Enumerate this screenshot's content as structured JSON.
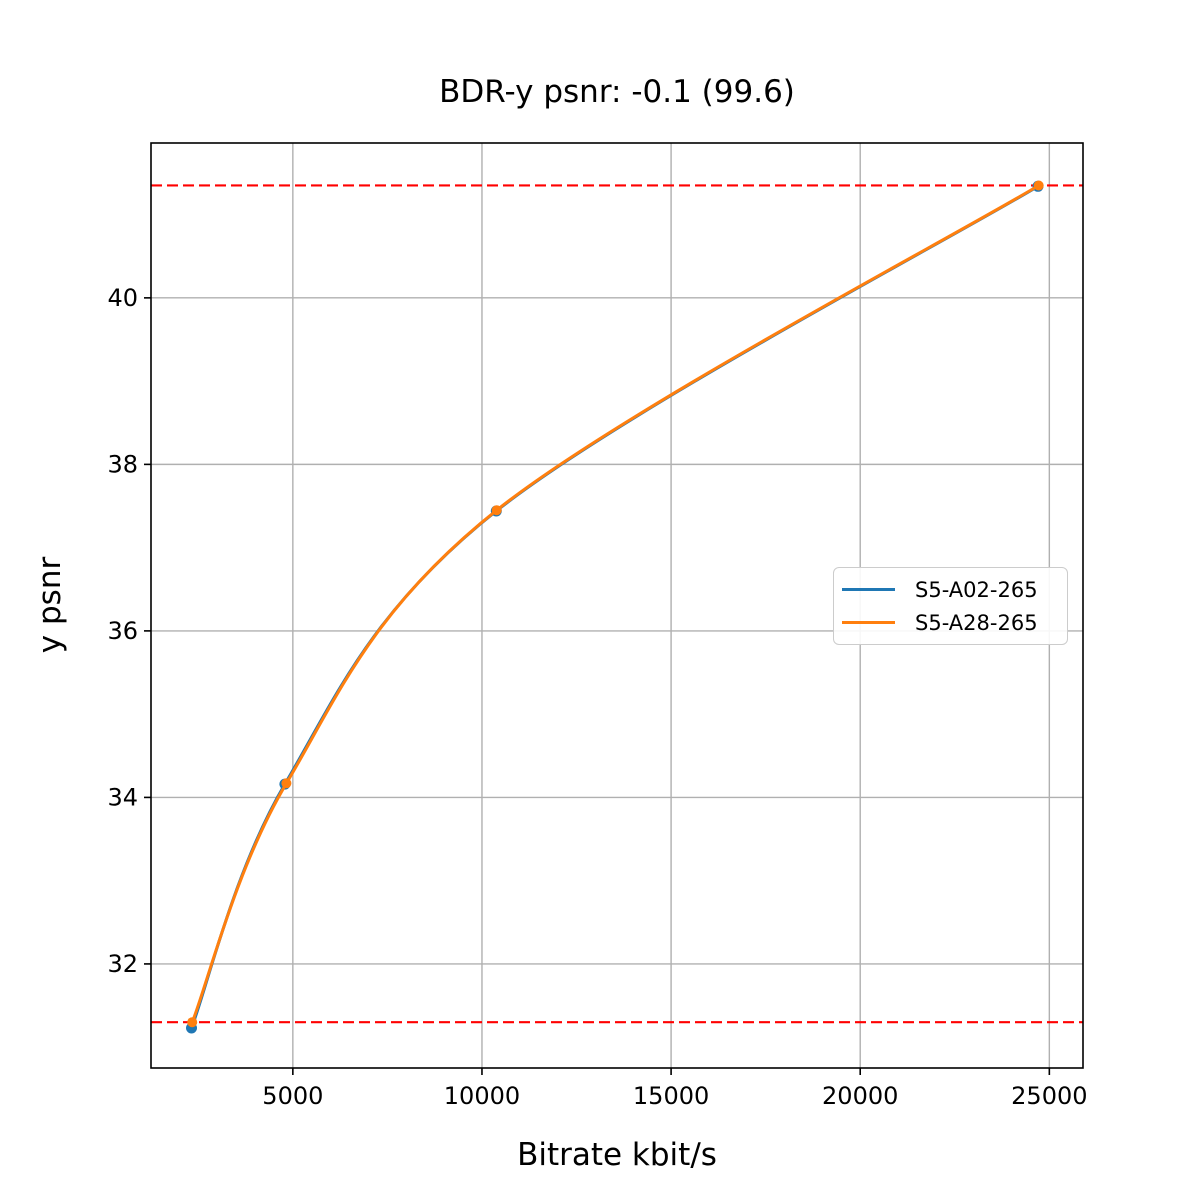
{
  "figure": {
    "background": "#ffffff"
  },
  "chart_data": {
    "type": "line",
    "title": "BDR-y psnr: -0.1 (99.6)",
    "xlabel": "Bitrate kbit/s",
    "ylabel": "y psnr",
    "xlim": [
      1250,
      25890
    ],
    "ylim": [
      30.75,
      41.86
    ],
    "xticks": [
      5000,
      10000,
      15000,
      20000,
      25000
    ],
    "yticks": [
      32,
      34,
      36,
      38,
      40
    ],
    "grid": true,
    "grid_color": "#b0b0b0",
    "legend_position": "center right",
    "series": [
      {
        "name": "S5-A02-265",
        "color": "#1f77b4",
        "marker": "circle",
        "x": [
          2320,
          4790,
          10380,
          24700
        ],
        "y": [
          31.23,
          34.16,
          37.44,
          41.34
        ]
      },
      {
        "name": "S5-A28-265",
        "color": "#ff7f0e",
        "marker": "circle",
        "x": [
          2340,
          4830,
          10390,
          24720
        ],
        "y": [
          31.3,
          34.17,
          37.45,
          41.35
        ]
      }
    ],
    "hlines": [
      {
        "y": 31.3,
        "color": "#ff0000",
        "style": "dashed"
      },
      {
        "y": 41.35,
        "color": "#ff0000",
        "style": "dashed"
      }
    ]
  },
  "colors": {
    "spine": "#000000",
    "tick_label": "#000000",
    "reference_line": "#ff0000",
    "series_blue": "#1f77b4",
    "series_orange": "#ff7f0e"
  }
}
